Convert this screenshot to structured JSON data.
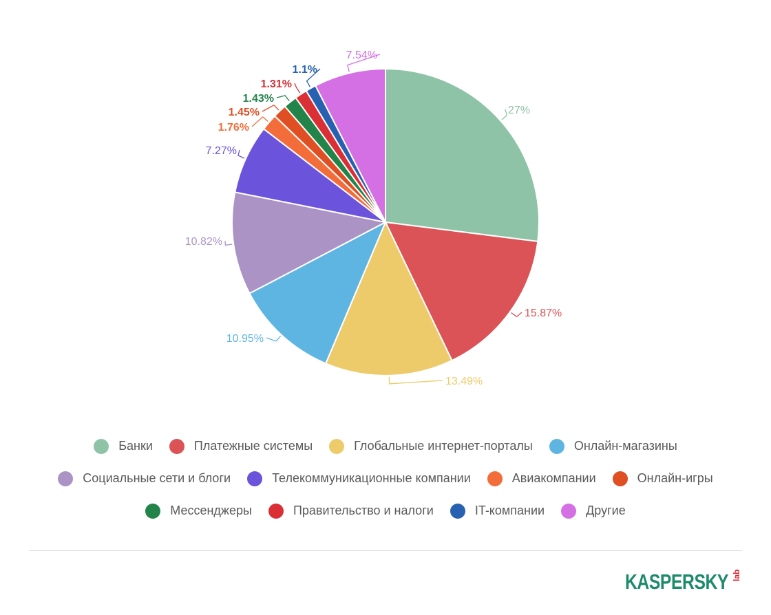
{
  "chart_data": {
    "type": "pie",
    "slices": [
      {
        "label": "Банки",
        "value": 27,
        "value_label": "27%",
        "color": "#8fc3a7"
      },
      {
        "label": "Платежные системы",
        "value": 15.87,
        "value_label": "15.87%",
        "color": "#db5357"
      },
      {
        "label": "Глобальные интернет-порталы",
        "value": 13.49,
        "value_label": "13.49%",
        "color": "#eecb6a"
      },
      {
        "label": "Онлайн-магазины",
        "value": 10.95,
        "value_label": "10.95%",
        "color": "#5fb5e2"
      },
      {
        "label": "Социальные сети и блоги",
        "value": 10.82,
        "value_label": "10.82%",
        "color": "#ab93c6"
      },
      {
        "label": "Телекоммуникационные компании",
        "value": 7.27,
        "value_label": "7.27%",
        "color": "#6c53db"
      },
      {
        "label": "Авиакомпании",
        "value": 1.76,
        "value_label": "1.76%",
        "color": "#f36d3b"
      },
      {
        "label": "Онлайн-игры",
        "value": 1.45,
        "value_label": "1.45%",
        "color": "#e04f24"
      },
      {
        "label": "Мессенджеры",
        "value": 1.43,
        "value_label": "1.43%",
        "color": "#23844a"
      },
      {
        "label": "Правительство и налоги",
        "value": 1.31,
        "value_label": "1.31%",
        "color": "#d92f35"
      },
      {
        "label": "IT-компании",
        "value": 1.1,
        "value_label": "1.1%",
        "color": "#2761b0"
      },
      {
        "label": "Другие",
        "value": 7.54,
        "value_label": "7.54%",
        "color": "#d46fe4"
      }
    ],
    "start_angle": "top",
    "direction": "clockwise",
    "legend_position": "bottom"
  },
  "logo": {
    "text": "KASPERSKY",
    "sub": "lab",
    "color_main": "#1d8a6b",
    "color_accent": "#d9252c"
  }
}
